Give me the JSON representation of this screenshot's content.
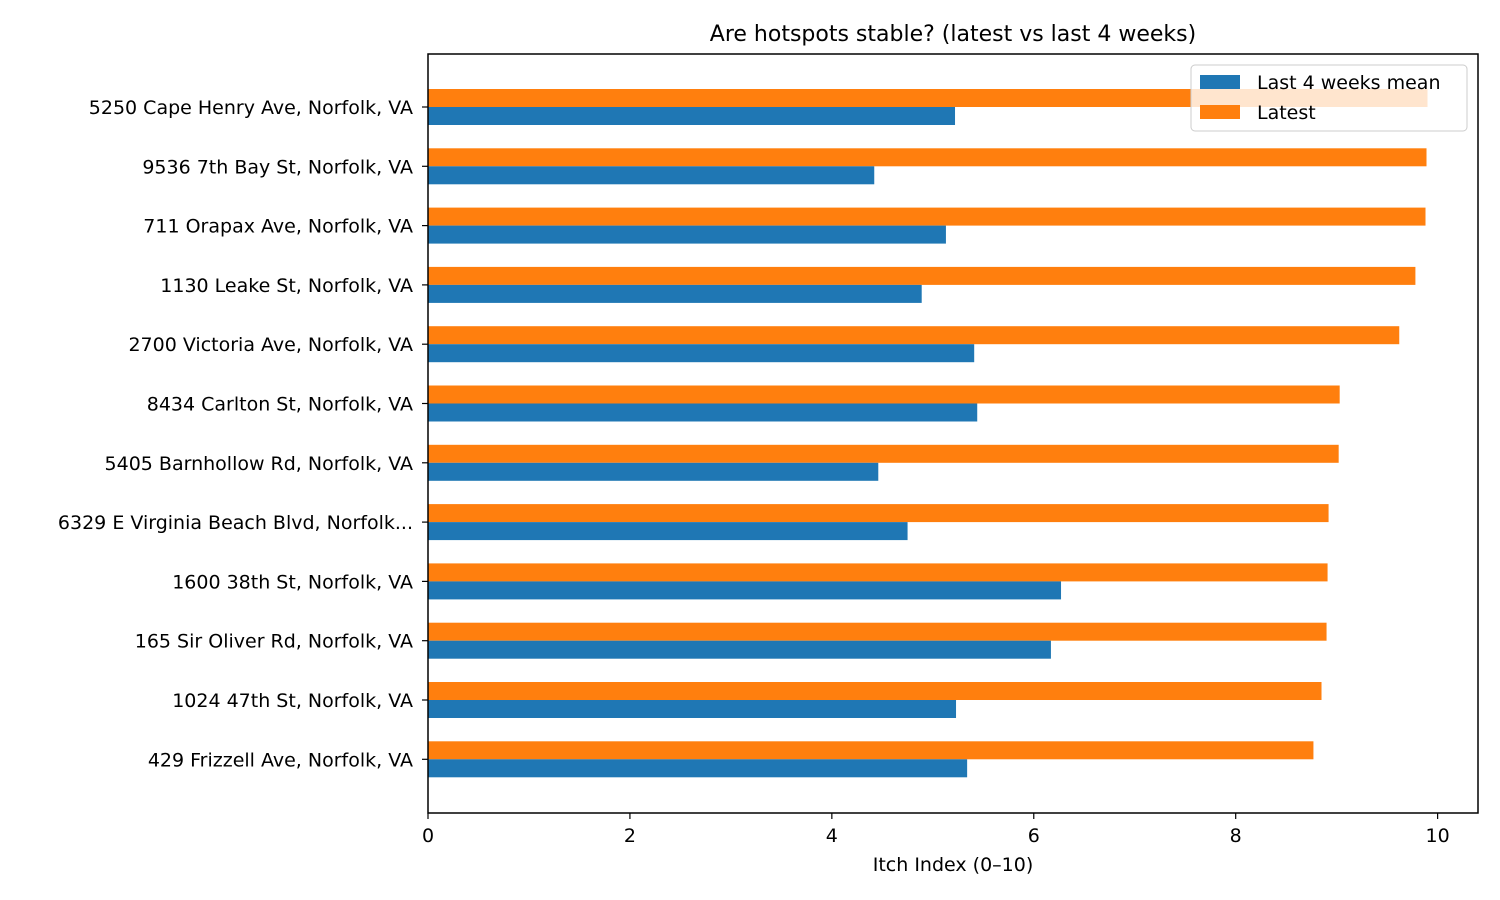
{
  "chart_data": {
    "type": "bar",
    "orientation": "horizontal",
    "title": "Are hotspots stable? (latest vs last 4 weeks)",
    "xlabel": "Itch Index (0–10)",
    "ylabel": "",
    "xlim": [
      0,
      10.4
    ],
    "xticks": [
      0,
      2,
      4,
      6,
      8,
      10
    ],
    "grid": false,
    "legend_position": "top-right",
    "categories": [
      "5250 Cape Henry Ave, Norfolk, VA",
      "9536 7th Bay St, Norfolk, VA",
      "711 Orapax Ave, Norfolk, VA",
      "1130 Leake St, Norfolk, VA",
      "2700 Victoria Ave, Norfolk, VA",
      "8434 Carlton St, Norfolk, VA",
      "5405 Barnhollow Rd, Norfolk, VA",
      "6329 E Virginia Beach Blvd, Norfolk...",
      "1600 38th St, Norfolk, VA",
      "165 Sir Oliver Rd, Norfolk, VA",
      "1024 47th St, Norfolk, VA",
      "429 Frizzell Ave, Norfolk, VA"
    ],
    "series": [
      {
        "name": "Last 4 weeks mean",
        "color": "#1f77b4",
        "values": [
          5.22,
          4.42,
          5.13,
          4.89,
          5.41,
          5.44,
          4.46,
          4.75,
          6.27,
          6.17,
          5.23,
          5.34
        ]
      },
      {
        "name": "Latest",
        "color": "#ff7f0e",
        "values": [
          9.9,
          9.89,
          9.88,
          9.78,
          9.62,
          9.03,
          9.02,
          8.92,
          8.91,
          8.9,
          8.85,
          8.77
        ]
      }
    ]
  }
}
